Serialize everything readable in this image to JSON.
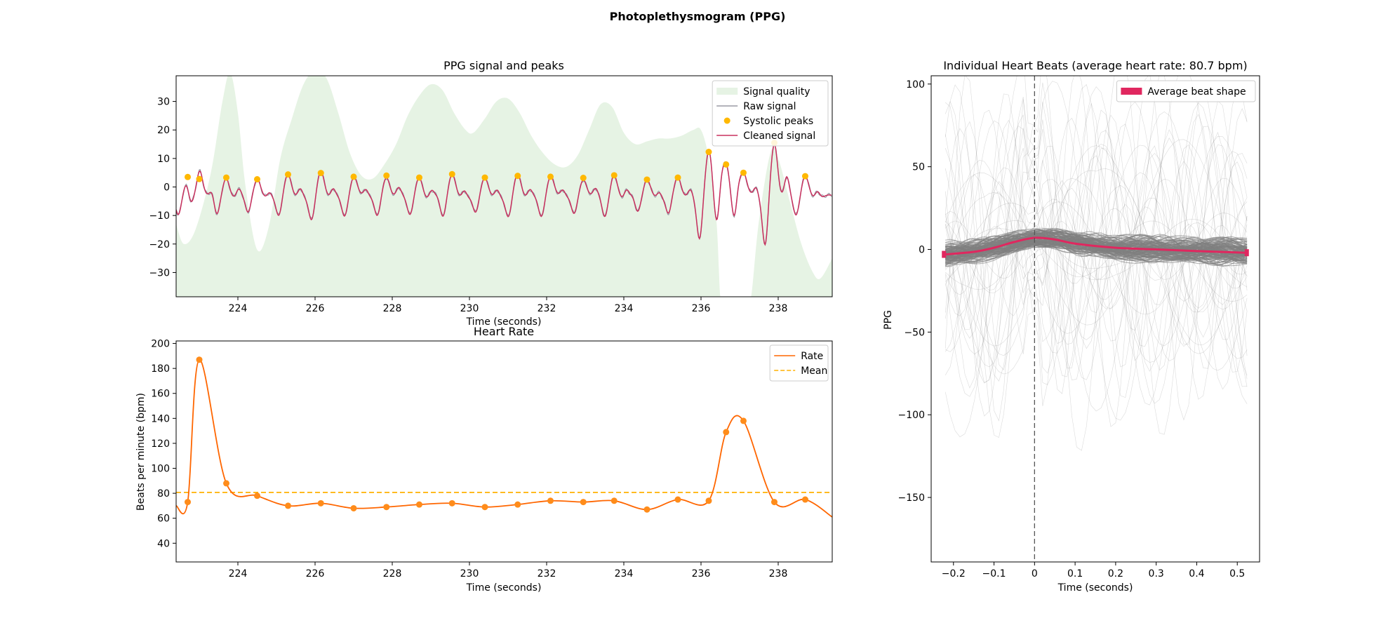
{
  "figure": {
    "title": "Photoplethysmogram (PPG)"
  },
  "colors": {
    "quality_fill": "#e6f3e4",
    "raw_signal": "#9a9aa4",
    "cleaned_signal": "#c8305e",
    "peaks": "#ffb800",
    "rate_line": "#ff6600",
    "rate_points": "#ff8c1a",
    "mean_line": "#ffb000",
    "average_beat": "#e0275f",
    "individual_beats": "#7f7f7f"
  },
  "chart_data": [
    {
      "id": "signal",
      "type": "line",
      "title": "PPG signal and peaks",
      "xlabel": "Time (seconds)",
      "ylabel": "",
      "xlim": [
        222.4,
        239.4
      ],
      "ylim": [
        -38.5,
        39
      ],
      "xticks": [
        224,
        226,
        228,
        230,
        232,
        234,
        236,
        238
      ],
      "yticks": [
        -30,
        -20,
        -10,
        0,
        10,
        20,
        30
      ],
      "grid": false,
      "legend_position": "top-right",
      "legend": [
        "Signal quality",
        "Raw signal",
        "Systolic peaks",
        "Cleaned signal"
      ],
      "series": [
        {
          "name": "Signal quality",
          "kind": "area",
          "x": [
            222.4,
            222.6,
            222.9,
            223.3,
            223.6,
            223.8,
            224.0,
            224.2,
            224.5,
            224.8,
            225.1,
            225.4,
            225.7,
            226.0,
            226.3,
            226.6,
            226.9,
            227.2,
            227.5,
            227.8,
            228.1,
            228.4,
            228.7,
            229.0,
            229.3,
            229.6,
            229.9,
            230.1,
            230.4,
            230.7,
            231.0,
            231.3,
            231.6,
            231.9,
            232.2,
            232.5,
            232.8,
            233.1,
            233.4,
            233.7,
            234.0,
            234.3,
            234.6,
            234.9,
            235.2,
            235.5,
            235.8,
            236.0,
            236.2,
            236.4,
            236.5,
            236.6,
            237.2,
            237.3,
            237.5,
            237.8,
            238.0,
            238.3,
            238.6,
            238.9,
            239.1,
            239.4
          ],
          "y": [
            -13,
            -20,
            -15,
            5,
            30,
            40,
            26,
            0,
            -22,
            -14,
            10,
            24,
            36,
            41,
            38,
            26,
            12,
            4,
            3,
            8,
            15,
            25,
            32,
            36,
            34,
            26,
            20,
            19,
            24,
            30,
            31,
            26,
            18,
            12,
            8,
            7,
            11,
            20,
            29,
            28,
            19,
            15,
            16,
            17,
            17,
            18,
            20,
            20,
            10,
            -12,
            -38.5,
            -38.5,
            -38.5,
            -38.5,
            -12,
            12,
            10,
            -5,
            -20,
            -30,
            -32,
            -25
          ]
        },
        {
          "name": "Systolic peaks",
          "kind": "points",
          "x": [
            222.7,
            223.0,
            223.7,
            224.5,
            225.3,
            226.15,
            227.0,
            227.85,
            228.7,
            229.55,
            230.4,
            231.25,
            232.1,
            232.95,
            233.75,
            234.6,
            235.4,
            236.2,
            236.65,
            237.1,
            237.9,
            238.7
          ],
          "y": [
            3.5,
            2.8,
            3.3,
            2.7,
            4.4,
            4.9,
            3.6,
            4.0,
            3.3,
            4.5,
            3.3,
            3.9,
            3.6,
            3.2,
            4.1,
            2.6,
            3.3,
            12.3,
            7.9,
            5.0,
            15.5,
            3.8
          ]
        },
        {
          "name": "Raw signal",
          "kind": "line",
          "x": [],
          "y": []
        },
        {
          "name": "Cleaned signal",
          "kind": "line",
          "x": [],
          "y": []
        }
      ]
    },
    {
      "id": "rate",
      "type": "line",
      "title": "Heart Rate",
      "xlabel": "Time (seconds)",
      "ylabel": "Beats per minute (bpm)",
      "xlim": [
        222.4,
        239.4
      ],
      "ylim": [
        25,
        202
      ],
      "xticks": [
        224,
        226,
        228,
        230,
        232,
        234,
        236,
        238
      ],
      "yticks": [
        40,
        60,
        80,
        100,
        120,
        140,
        160,
        180,
        200
      ],
      "grid": false,
      "legend_position": "top-right",
      "legend": [
        "Rate",
        "Mean"
      ],
      "mean": 80.7,
      "series": [
        {
          "name": "Rate",
          "x": [
            222.7,
            223.0,
            223.7,
            224.5,
            225.3,
            226.15,
            227.0,
            227.85,
            228.7,
            229.55,
            230.4,
            231.25,
            232.1,
            232.95,
            233.75,
            234.6,
            235.4,
            236.2,
            236.65,
            237.1,
            237.9,
            238.7
          ],
          "y": [
            73,
            187,
            88,
            78,
            70,
            72,
            68,
            69,
            71,
            72,
            69,
            71,
            74,
            73,
            74,
            67,
            75,
            74,
            129,
            138,
            73,
            75
          ]
        }
      ]
    },
    {
      "id": "beats",
      "type": "line",
      "title": "Individual Heart Beats (average heart rate: 80.7 bpm)",
      "xlabel": "Time (seconds)",
      "ylabel": "PPG",
      "xlim": [
        -0.255,
        0.555
      ],
      "ylim": [
        -189,
        105
      ],
      "xticks": [
        -0.2,
        -0.1,
        0.0,
        0.1,
        0.2,
        0.3,
        0.4,
        0.5
      ],
      "yticks": [
        -150,
        -100,
        -50,
        0,
        50,
        100
      ],
      "grid": false,
      "legend_position": "top-right",
      "legend": [
        "Average beat shape"
      ],
      "vline_x": 0.0,
      "series": [
        {
          "name": "Average beat shape",
          "x": [
            -0.22,
            -0.15,
            -0.1,
            -0.05,
            0.0,
            0.05,
            0.1,
            0.2,
            0.3,
            0.4,
            0.52
          ],
          "y": [
            -3,
            -1.5,
            1,
            4.5,
            7,
            6,
            3.5,
            1,
            0,
            -1,
            -2
          ]
        }
      ]
    }
  ]
}
